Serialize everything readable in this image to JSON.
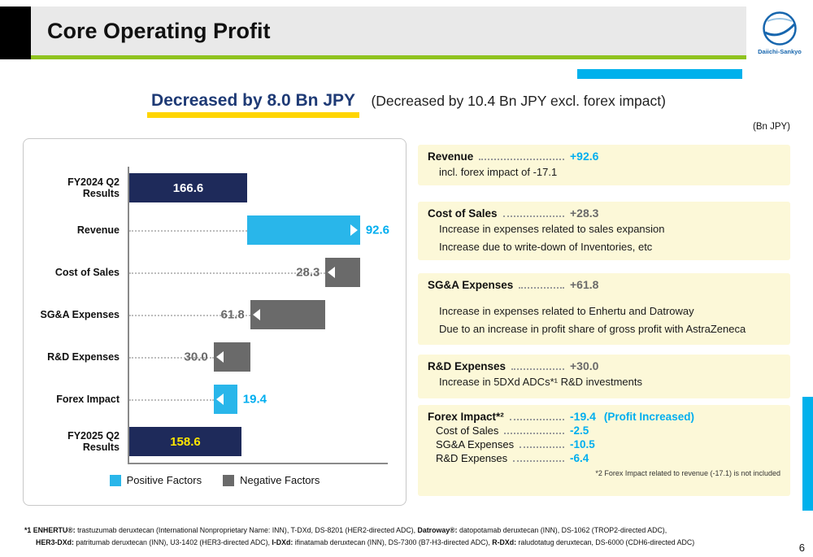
{
  "header": {
    "title": "Core Operating Profit",
    "logo": "Daiichi-Sankyo"
  },
  "headline": {
    "main": "Decreased by 8.0 Bn JPY",
    "sub": "(Decreased by 10.4 Bn JPY excl. forex impact)"
  },
  "unit_label": "(Bn JPY)",
  "chart_data": {
    "type": "bar",
    "subtype": "horizontal-waterfall",
    "categories": [
      "FY2024 Q2 Results",
      "Revenue",
      "Cost of Sales",
      "SG&A Expenses",
      "R&D Expenses",
      "Forex Impact",
      "FY2025 Q2 Results"
    ],
    "values": [
      166.6,
      92.6,
      -28.3,
      -61.8,
      -30.0,
      19.4,
      158.6
    ],
    "labels": [
      "166.6",
      "92.6",
      "28.3",
      "61.8",
      "30.0",
      "19.4",
      "158.6"
    ],
    "bar_types": [
      "total",
      "positive",
      "negative",
      "negative",
      "negative",
      "positive",
      "total"
    ],
    "arrows": [
      "none",
      "right",
      "left",
      "left",
      "left",
      "left",
      "none"
    ],
    "label_pos": [
      "inside",
      "right",
      "left",
      "left",
      "left",
      "right",
      "inside"
    ],
    "value_styles": [
      "white",
      "cyan",
      "gray",
      "gray",
      "gray",
      "cyan",
      "yellow"
    ],
    "colors": {
      "total": "#1e2a5a",
      "positive": "#29b6ea",
      "negative": "#6a6a6a"
    },
    "legend": [
      {
        "label": "Positive Factors",
        "style": "cyan"
      },
      {
        "label": "Negative Factors",
        "style": "gray"
      }
    ]
  },
  "panels": [
    {
      "title": "Revenue",
      "value": "+92.6",
      "value_style": "cyan",
      "lines": [
        "incl. forex impact of -17.1"
      ]
    },
    {
      "title": "Cost of Sales",
      "value": "+28.3",
      "value_style": "gray",
      "lines": [
        "Increase  in expenses related to sales expansion",
        "Increase due to write-down of Inventories, etc"
      ]
    },
    {
      "title": "SG&A Expenses",
      "value": "+61.8",
      "value_style": "gray",
      "lines": [
        "Increase in expenses related to Enhertu  and Datroway",
        "Due to an increase in profit share of gross profit with AstraZeneca"
      ]
    },
    {
      "title": "R&D Expenses",
      "value": "+30.0",
      "value_style": "gray",
      "lines": [
        "Increase in 5DXd ADCs*¹ R&D investments"
      ]
    }
  ],
  "forex_panel": {
    "title": "Forex Impact*²",
    "value": "-19.4",
    "suffix": "(Profit Increased)",
    "rows": [
      {
        "label": "Cost of Sales",
        "value": "-2.5"
      },
      {
        "label": "SG&A Expenses",
        "value": "-10.5"
      },
      {
        "label": "R&D Expenses",
        "value": "-6.4"
      }
    ],
    "footnote": "*2 Forex Impact related to revenue (-17.1) is not included"
  },
  "footnotes": [
    [
      {
        "text": "*1 ENHERTU®:",
        "bold": true
      },
      {
        "text": " trastuzumab deruxtecan (International Nonproprietary Name: INN), T-DXd, DS-8201 (HER2-directed ADC), ",
        "bold": false
      },
      {
        "text": "Datroway®:",
        "bold": true
      },
      {
        "text": " datopotamab deruxtecan (INN), DS-1062 (TROP2-directed ADC),",
        "bold": false
      }
    ],
    [
      {
        "text": "HER3-DXd:",
        "bold": true
      },
      {
        "text": " patritumab deruxtecan (INN), U3-1402 (HER3-directed ADC), ",
        "bold": false
      },
      {
        "text": "I-DXd:",
        "bold": true
      },
      {
        "text": " ifinatamab deruxtecan (INN), DS-7300 (B7-H3-directed ADC), ",
        "bold": false
      },
      {
        "text": "R-DXd:",
        "bold": true
      },
      {
        "text": " raludotatug deruxtecan, DS-6000 (CDH6-directed ADC)",
        "bold": false
      }
    ]
  ],
  "page_number": "6"
}
